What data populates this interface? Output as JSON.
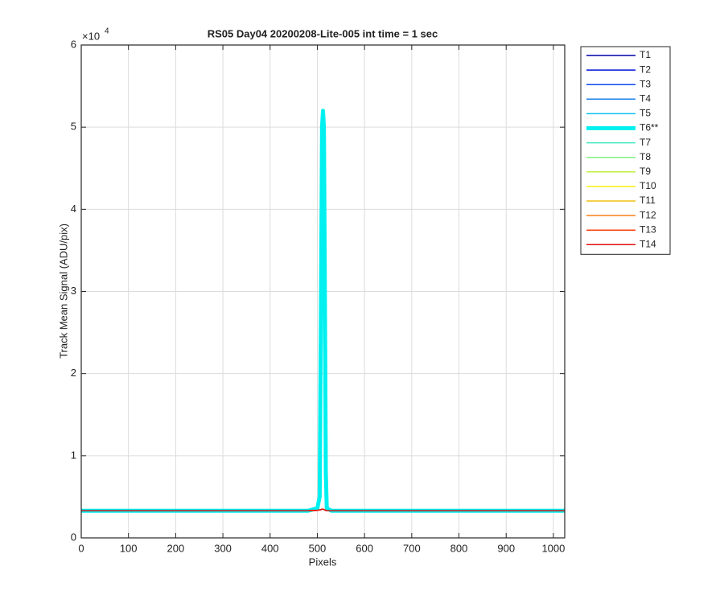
{
  "chart_data": {
    "type": "line",
    "title": "RS05 Day04 20200208-Lite-005 int time = 1 sec",
    "x_label": "Pixels",
    "y_label": "Track Mean Signal (ADU/pix)",
    "y_multiplier": {
      "base": "×10",
      "exponent": "4"
    },
    "xlim": [
      0,
      1024
    ],
    "ylim": [
      0,
      60000
    ],
    "xticks": [
      0,
      100,
      200,
      300,
      400,
      500,
      600,
      700,
      800,
      900,
      1000
    ],
    "yticks": [
      {
        "value": 0,
        "label": "0"
      },
      {
        "value": 10000,
        "label": "1"
      },
      {
        "value": 20000,
        "label": "2"
      },
      {
        "value": 30000,
        "label": "3"
      },
      {
        "value": 40000,
        "label": "4"
      },
      {
        "value": 50000,
        "label": "5"
      },
      {
        "value": 60000,
        "label": "6"
      }
    ],
    "grid": true,
    "legend_location": "northeastoutside",
    "x": [
      0,
      480,
      500,
      505,
      508,
      510,
      512,
      514,
      516,
      518,
      520,
      530,
      1024
    ],
    "series": [
      {
        "name": "T1",
        "color": "#0000a8",
        "line_width": 1.5,
        "values": [
          3300,
          3300,
          3350,
          3400,
          3450,
          3500,
          3500,
          3450,
          3400,
          3350,
          3300,
          3300,
          3300
        ]
      },
      {
        "name": "T2",
        "color": "#0010d8",
        "line_width": 1.5,
        "values": [
          3300,
          3300,
          3350,
          3400,
          3450,
          3500,
          3500,
          3450,
          3400,
          3350,
          3300,
          3300,
          3300
        ]
      },
      {
        "name": "T3",
        "color": "#0848f0",
        "line_width": 1.5,
        "values": [
          3300,
          3300,
          3350,
          3400,
          3450,
          3500,
          3500,
          3450,
          3400,
          3350,
          3300,
          3300,
          3300
        ]
      },
      {
        "name": "T4",
        "color": "#1880e8",
        "line_width": 1.5,
        "values": [
          3300,
          3300,
          3350,
          3400,
          3450,
          3500,
          3500,
          3450,
          3400,
          3350,
          3300,
          3300,
          3300
        ]
      },
      {
        "name": "T5",
        "color": "#10c0f0",
        "line_width": 1.5,
        "values": [
          3300,
          3300,
          3350,
          3400,
          3450,
          3500,
          3500,
          3450,
          3400,
          3350,
          3300,
          3300,
          3300
        ]
      },
      {
        "name": "T6**",
        "color": "#00f0f0",
        "line_width": 5,
        "values": [
          3300,
          3300,
          3600,
          5000,
          30000,
          50000,
          52000,
          50000,
          30000,
          8000,
          3600,
          3300,
          3300
        ]
      },
      {
        "name": "T7",
        "color": "#40e8c0",
        "line_width": 1.5,
        "values": [
          3300,
          3300,
          3350,
          3400,
          3450,
          3500,
          3500,
          3450,
          3400,
          3350,
          3300,
          3300,
          3300
        ]
      },
      {
        "name": "T8",
        "color": "#80f080",
        "line_width": 1.5,
        "values": [
          3300,
          3300,
          3350,
          3400,
          3450,
          3500,
          3500,
          3450,
          3400,
          3350,
          3300,
          3300,
          3300
        ]
      },
      {
        "name": "T9",
        "color": "#c0f040",
        "line_width": 1.5,
        "values": [
          3300,
          3300,
          3350,
          3400,
          3450,
          3500,
          3500,
          3450,
          3400,
          3350,
          3300,
          3300,
          3300
        ]
      },
      {
        "name": "T10",
        "color": "#f8f010",
        "line_width": 1.5,
        "values": [
          3300,
          3300,
          3350,
          3400,
          3450,
          3500,
          3500,
          3450,
          3400,
          3350,
          3300,
          3300,
          3300
        ]
      },
      {
        "name": "T11",
        "color": "#f0c010",
        "line_width": 1.5,
        "values": [
          3300,
          3300,
          3350,
          3400,
          3450,
          3500,
          3500,
          3450,
          3400,
          3350,
          3300,
          3300,
          3300
        ]
      },
      {
        "name": "T12",
        "color": "#f88018",
        "line_width": 1.5,
        "values": [
          3300,
          3300,
          3350,
          3400,
          3450,
          3500,
          3500,
          3450,
          3400,
          3350,
          3300,
          3300,
          3300
        ]
      },
      {
        "name": "T13",
        "color": "#f84010",
        "line_width": 1.5,
        "values": [
          3300,
          3300,
          3350,
          3400,
          3450,
          3500,
          3500,
          3450,
          3400,
          3350,
          3300,
          3300,
          3300
        ]
      },
      {
        "name": "T14",
        "color": "#e01010",
        "line_width": 1.5,
        "values": [
          3300,
          3300,
          3350,
          3400,
          3450,
          3500,
          3500,
          3450,
          3400,
          3350,
          3300,
          3300,
          3300
        ]
      }
    ]
  }
}
